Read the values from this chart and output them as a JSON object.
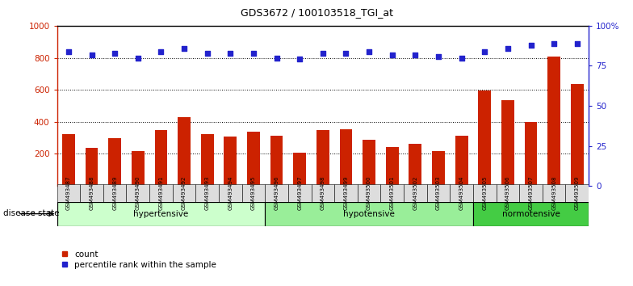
{
  "title": "GDS3672 / 100103518_TGI_at",
  "samples": [
    "GSM493487",
    "GSM493488",
    "GSM493489",
    "GSM493490",
    "GSM493491",
    "GSM493492",
    "GSM493493",
    "GSM493494",
    "GSM493495",
    "GSM493496",
    "GSM493497",
    "GSM493498",
    "GSM493499",
    "GSM493500",
    "GSM493501",
    "GSM493502",
    "GSM493503",
    "GSM493504",
    "GSM493505",
    "GSM493506",
    "GSM493507",
    "GSM493508",
    "GSM493509"
  ],
  "counts": [
    325,
    238,
    298,
    218,
    350,
    428,
    322,
    308,
    338,
    315,
    207,
    350,
    352,
    287,
    245,
    265,
    218,
    315,
    597,
    535,
    400,
    810,
    635
  ],
  "percentile_ranks": [
    84,
    82,
    83,
    80,
    84,
    86,
    83,
    83,
    83,
    80,
    79,
    83,
    83,
    84,
    82,
    82,
    81,
    80,
    84,
    86,
    88,
    89,
    89
  ],
  "groups": [
    {
      "name": "hypertensive",
      "start": 0,
      "end": 9,
      "color": "#ccffcc"
    },
    {
      "name": "hypotensive",
      "start": 9,
      "end": 18,
      "color": "#99ee99"
    },
    {
      "name": "normotensive",
      "start": 18,
      "end": 23,
      "color": "#44cc44"
    }
  ],
  "bar_color": "#cc2200",
  "dot_color": "#2222cc",
  "ylim_left": [
    0,
    1000
  ],
  "ylim_right": [
    0,
    100
  ],
  "yticks_left": [
    200,
    400,
    600,
    800,
    1000
  ],
  "yticks_right": [
    0,
    25,
    50,
    75,
    100
  ],
  "grid_values": [
    200,
    400,
    600,
    800
  ],
  "left_axis_color": "#cc2200",
  "right_axis_color": "#2222cc",
  "legend_count_label": "count",
  "legend_percentile_label": "percentile rank within the sample",
  "disease_state_label": "disease state",
  "xtick_bg_color": "#dddddd",
  "top_border_color": "#000000",
  "group_border_color": "#000000"
}
